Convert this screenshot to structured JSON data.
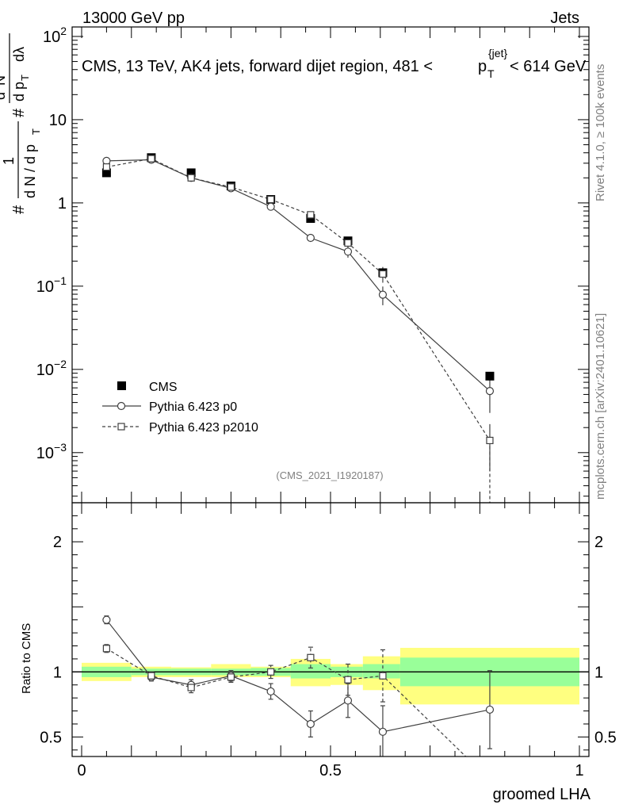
{
  "header": {
    "left": "13000 GeV pp",
    "right": "Jets"
  },
  "chart_data": {
    "type": "line",
    "title": "CMS, 13 TeV, AK4 jets, forward dijet region, 481 <p_T^{jet}< 614 GeV",
    "title_parts": {
      "before": "CMS, 13 TeV, AK4 jets, forward dijet region, 481 <",
      "p": "p",
      "sub": "T",
      "sup": "{jet}",
      "after": "< 614 GeV"
    },
    "ylabel_parts": {
      "hash_outer": "#",
      "one": "1",
      "dN_over": "d N / d p",
      "dN_sub": "T",
      "hash_inner": "#",
      "d2N_d": "d",
      "d2N_sup": "2",
      "d2N_N": "N",
      "dpT": "d p",
      "dpT_sub": "T",
      "dlambda": "dλ"
    },
    "xlabel": "groomed LHA",
    "ratio_ylabel": "Ratio to CMS",
    "side_labels": {
      "rivet": "Rivet 4.1.0, ≥ 100k events",
      "mcplots": "mcplots.cern.ch [arXiv:2401.10621]"
    },
    "watermark": "(CMS_2021_I1920187)",
    "legend_position": "lower-left",
    "x_range": [
      0,
      1
    ],
    "y_range_log": [
      0.00025,
      130
    ],
    "ratio_range": [
      0.35,
      2.3
    ],
    "x_ticks": [
      {
        "value": 0,
        "label": "0"
      },
      {
        "value": 0.5,
        "label": "0.5"
      },
      {
        "value": 1,
        "label": "1"
      }
    ],
    "y_ticks": [
      {
        "value": 100,
        "base": "10",
        "exp": "2"
      },
      {
        "value": 10,
        "base": "10",
        "exp": ""
      },
      {
        "value": 1,
        "base": "1",
        "exp": ""
      },
      {
        "value": 0.1,
        "base": "10",
        "exp": "−1"
      },
      {
        "value": 0.01,
        "base": "10",
        "exp": "−2"
      },
      {
        "value": 0.001,
        "base": "10",
        "exp": "−3"
      }
    ],
    "ratio_ticks": [
      {
        "value": 2,
        "label": "2"
      },
      {
        "value": 1,
        "label": "1"
      },
      {
        "value": 0.5,
        "label": "0.5"
      }
    ],
    "bins": [
      [
        0.0,
        0.1
      ],
      [
        0.1,
        0.18
      ],
      [
        0.18,
        0.26
      ],
      [
        0.26,
        0.34
      ],
      [
        0.34,
        0.42
      ],
      [
        0.42,
        0.5
      ],
      [
        0.5,
        0.565
      ],
      [
        0.565,
        0.64
      ],
      [
        0.64,
        1.0
      ]
    ],
    "series": [
      {
        "name": "CMS",
        "style": "data",
        "x": [
          0.05,
          0.14,
          0.22,
          0.3,
          0.38,
          0.46,
          0.535,
          0.605,
          0.82
        ],
        "y": [
          2.3,
          3.5,
          2.3,
          1.6,
          1.1,
          0.65,
          0.35,
          0.145,
          0.0083
        ],
        "ratio": [
          1,
          1,
          1,
          1,
          1,
          1,
          1,
          1,
          1
        ]
      },
      {
        "name": "Pythia 6.423 p0",
        "style": "solid-circle",
        "x": [
          0.05,
          0.14,
          0.22,
          0.3,
          0.38,
          0.46,
          0.535,
          0.605,
          0.82
        ],
        "y": [
          3.2,
          3.3,
          2.0,
          1.5,
          0.9,
          0.38,
          0.26,
          0.079,
          0.0055
        ],
        "y_err": [
          0.12,
          0.12,
          0.08,
          0.06,
          0.05,
          0.04,
          0.04,
          0.02,
          0.0025
        ],
        "ratio": [
          1.4,
          0.96,
          0.9,
          0.97,
          0.85,
          0.6,
          0.78,
          0.54,
          0.71
        ],
        "ratio_err": [
          0.03,
          0.03,
          0.04,
          0.04,
          0.06,
          0.1,
          0.13,
          0.2,
          0.3
        ]
      },
      {
        "name": "Pythia 6.423 p2010",
        "style": "dashed-square",
        "x": [
          0.05,
          0.14,
          0.22,
          0.3,
          0.38,
          0.46,
          0.535,
          0.605,
          0.82
        ],
        "y": [
          2.7,
          3.4,
          2.0,
          1.55,
          1.1,
          0.72,
          0.33,
          0.14,
          0.0014
        ],
        "y_err": [
          0.1,
          0.1,
          0.08,
          0.06,
          0.06,
          0.06,
          0.05,
          0.03,
          0.0008
        ],
        "ratio": [
          1.18,
          0.97,
          0.88,
          0.96,
          1.0,
          1.11,
          0.94,
          0.97,
          0.17
        ],
        "ratio_err": [
          0.03,
          0.03,
          0.04,
          0.04,
          0.05,
          0.08,
          0.12,
          0.2,
          0.15
        ]
      }
    ],
    "uncertainty_bands": {
      "inner_color": "#99ff99",
      "outer_color": "#ffff80",
      "inner": [
        [
          0.96,
          1.04
        ],
        [
          0.975,
          1.025
        ],
        [
          0.975,
          1.025
        ],
        [
          0.975,
          1.025
        ],
        [
          0.97,
          1.03
        ],
        [
          0.95,
          1.06
        ],
        [
          0.96,
          1.04
        ],
        [
          0.95,
          1.06
        ],
        [
          0.89,
          1.11
        ]
      ],
      "outer": [
        [
          0.93,
          1.07
        ],
        [
          0.96,
          1.04
        ],
        [
          0.96,
          1.035
        ],
        [
          0.96,
          1.06
        ],
        [
          0.96,
          1.04
        ],
        [
          0.89,
          1.1
        ],
        [
          0.9,
          1.06
        ],
        [
          0.86,
          1.12
        ],
        [
          0.75,
          1.185
        ]
      ]
    }
  }
}
